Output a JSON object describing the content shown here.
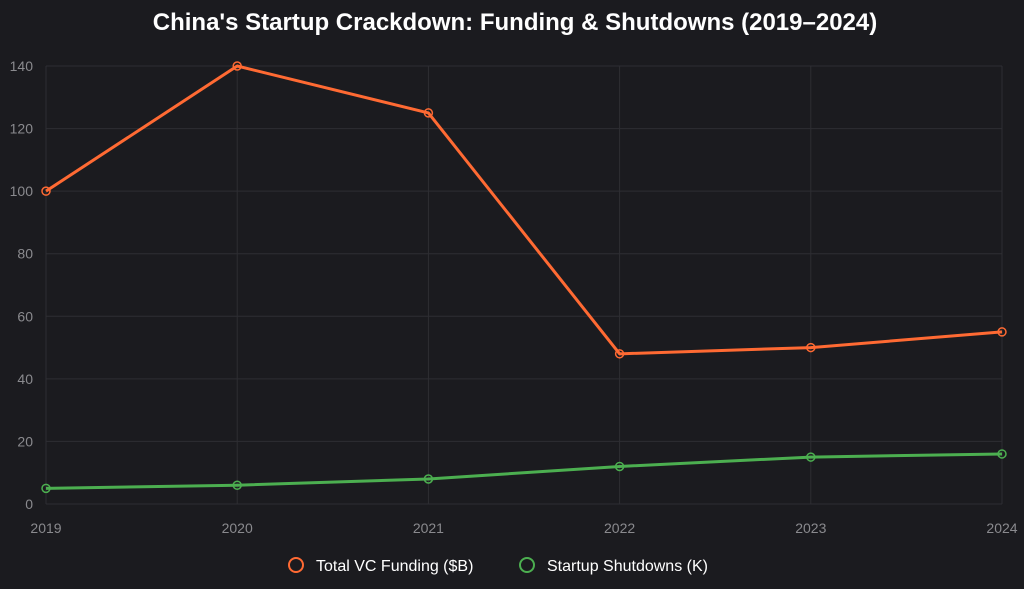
{
  "chart_data": {
    "type": "line",
    "title": "China's Startup Crackdown: Funding & Shutdowns (2019–2024)",
    "x": [
      "2019",
      "2020",
      "2021",
      "2022",
      "2023",
      "2024"
    ],
    "ylim": [
      0,
      140
    ],
    "yticks": [
      "0",
      "20",
      "40",
      "60",
      "80",
      "100",
      "120",
      "140"
    ],
    "grid": true,
    "legend_position": "bottom-center",
    "series": [
      {
        "name": "Total VC Funding ($B)",
        "color": "#ff6a33",
        "values": [
          100,
          140,
          125,
          48,
          50,
          55
        ]
      },
      {
        "name": "Startup Shutdowns (K)",
        "color": "#4caf50",
        "values": [
          5,
          6,
          8,
          12,
          15,
          16
        ]
      }
    ]
  }
}
